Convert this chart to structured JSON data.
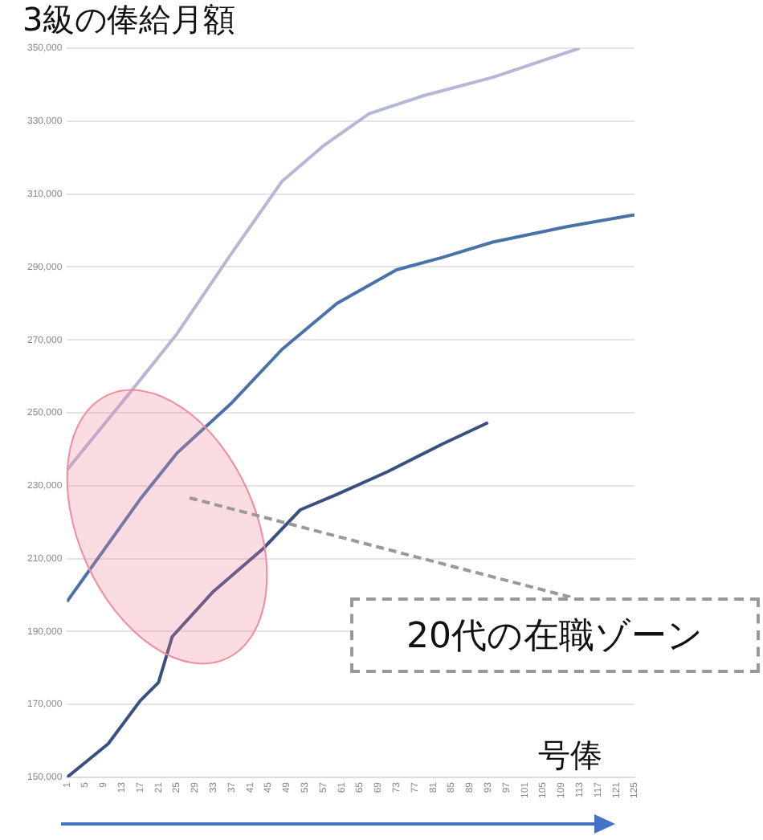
{
  "chart_data": {
    "type": "line",
    "title": "3級の俸給月額",
    "xlabel": "号俸",
    "series": [
      {
        "color": "#b4b8d4",
        "x": [
          1,
          17,
          25,
          37,
          48,
          57,
          67,
          79,
          94,
          113
        ],
        "values": [
          234300,
          259000,
          271600,
          293800,
          313500,
          323200,
          332000,
          337000,
          342000,
          350000
        ]
      },
      {
        "color": "#4a72a8",
        "x": [
          1,
          17,
          25,
          37,
          48,
          60,
          73,
          83,
          94,
          110,
          125
        ],
        "values": [
          198200,
          226300,
          238900,
          252700,
          267400,
          280000,
          289200,
          292600,
          296800,
          301000,
          304300
        ]
      },
      {
        "color": "#3a5080",
        "x": [
          1,
          10,
          17,
          21,
          24,
          33,
          44,
          52,
          60,
          71,
          83,
          93
        ],
        "values": [
          150000,
          159200,
          171000,
          176000,
          188600,
          201000,
          212900,
          223400,
          227600,
          233800,
          241400,
          247300
        ]
      }
    ],
    "xlim": [
      1,
      125
    ],
    "xticks": [
      1,
      5,
      9,
      13,
      17,
      21,
      25,
      29,
      33,
      37,
      41,
      45,
      49,
      53,
      57,
      61,
      65,
      69,
      73,
      77,
      81,
      85,
      89,
      93,
      97,
      101,
      105,
      109,
      113,
      117,
      121,
      125
    ],
    "ylim": [
      150000,
      350000
    ],
    "yticks": [
      {
        "value": 150000,
        "label": "150,000"
      },
      {
        "value": 170000,
        "label": "170,000"
      },
      {
        "value": 190000,
        "label": "190,000"
      },
      {
        "value": 210000,
        "label": "210,000"
      },
      {
        "value": 230000,
        "label": "230,000"
      },
      {
        "value": 250000,
        "label": "250,000"
      },
      {
        "value": 270000,
        "label": "270,000"
      },
      {
        "value": 290000,
        "label": "290,000"
      },
      {
        "value": 310000,
        "label": "310,000"
      },
      {
        "value": 330000,
        "label": "330,000"
      },
      {
        "value": 350000,
        "label": "350,000"
      }
    ],
    "grid": "y",
    "legend": false,
    "marker": "none",
    "line_style": "solid",
    "annotations": [
      "20代の在職ゾーン"
    ]
  }
}
